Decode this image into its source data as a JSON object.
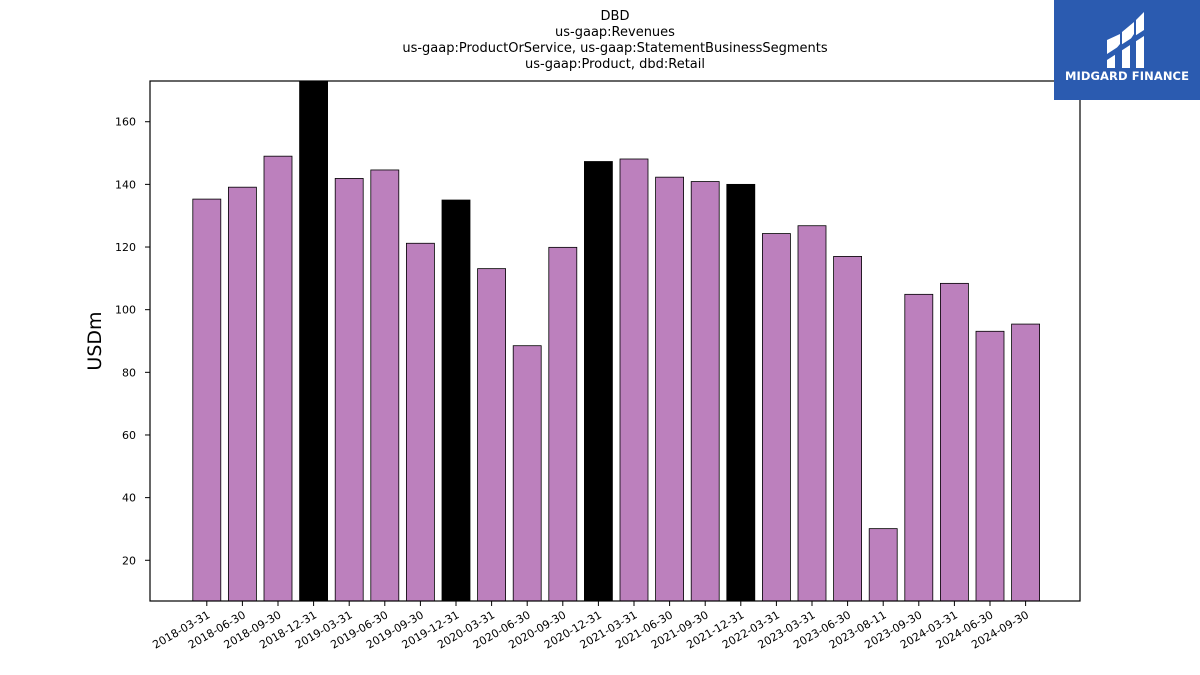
{
  "chart_data": {
    "type": "bar",
    "title_lines": [
      "DBD",
      "us-gaap:Revenues",
      "us-gaap:ProductOrService, us-gaap:StatementBusinessSegments",
      "us-gaap:Product, dbd:Retail"
    ],
    "xlabel": "",
    "ylabel": "USDm",
    "ylim": [
      7,
      173
    ],
    "yticks": [
      20,
      40,
      60,
      80,
      100,
      120,
      140,
      160
    ],
    "categories": [
      "2018-03-31",
      "2018-06-30",
      "2018-09-30",
      "2018-12-31",
      "2019-03-31",
      "2019-06-30",
      "2019-09-30",
      "2019-12-31",
      "2020-03-31",
      "2020-06-30",
      "2020-09-30",
      "2020-12-31",
      "2021-03-31",
      "2021-06-30",
      "2021-09-30",
      "2021-12-31",
      "2022-03-31",
      "2023-03-31",
      "2023-06-30",
      "2023-08-11",
      "2023-09-30",
      "2024-03-31",
      "2024-06-30",
      "2024-09-30"
    ],
    "values": [
      135.3,
      139.1,
      149.0,
      173.0,
      141.9,
      144.6,
      121.2,
      135.0,
      113.1,
      88.5,
      119.9,
      147.3,
      148.1,
      142.3,
      140.9,
      140.0,
      124.3,
      126.8,
      117.0,
      30.1,
      104.9,
      108.4,
      93.1,
      95.4
    ],
    "highlight": [
      false,
      false,
      false,
      true,
      false,
      false,
      false,
      true,
      false,
      false,
      false,
      true,
      false,
      false,
      false,
      true,
      false,
      false,
      false,
      false,
      false,
      false,
      false,
      false
    ],
    "colors": {
      "bar": "#bc80bd",
      "highlight": "#000000",
      "edge": "#000000"
    },
    "grid": false,
    "legend": "none"
  },
  "logo": {
    "brand_text": "MIDGARD FINANCE",
    "icon": "midgard-logo-icon",
    "background": "#2b5bb0"
  }
}
